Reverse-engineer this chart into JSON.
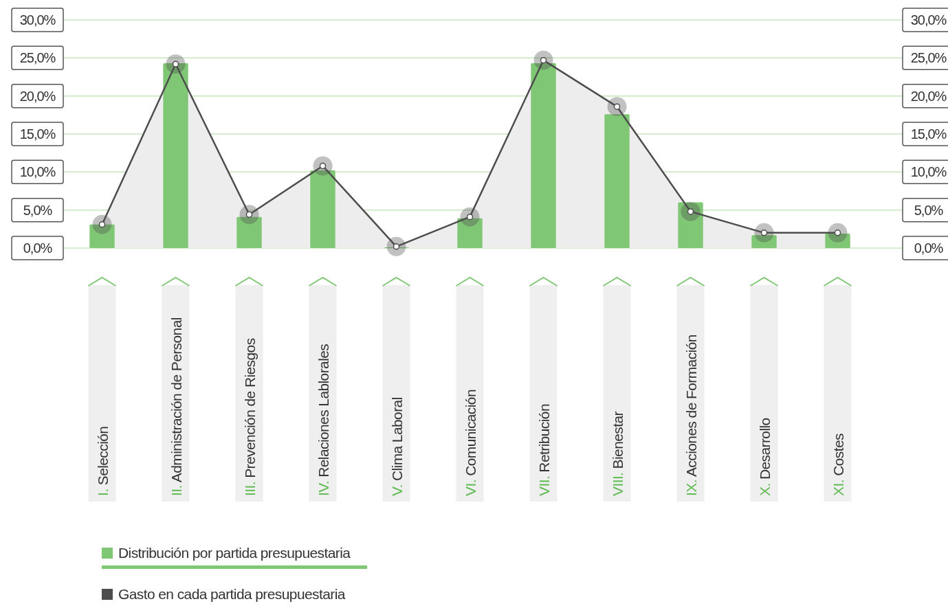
{
  "chart_data": {
    "type": "bar",
    "categories": [
      "I. Selección",
      "II. Administración de Personal",
      "III. Prevención de Riesgos",
      "IV. Relaciones Lablorales",
      "V. Clima Laboral",
      "VI. Comunicación",
      "VII. Retribución",
      "VIII. Bienestar",
      "IX. Acciones de Formación",
      "X. Desarrollo",
      "XI. Costes"
    ],
    "series": [
      {
        "name": "Distribución por partida presupuestaria",
        "color": "#80c775",
        "values": [
          3.1,
          24.3,
          4.1,
          10.2,
          0.1,
          3.9,
          24.3,
          17.6,
          6.0,
          1.7,
          1.9
        ]
      },
      {
        "name": "Gasto en cada partida presupuestaria",
        "type": "area",
        "color": "#4d4d4d",
        "values": [
          3.1,
          24.2,
          4.4,
          10.8,
          0.2,
          4.1,
          24.7,
          18.6,
          4.8,
          2.0,
          2.0
        ]
      }
    ],
    "ylim": [
      0,
      30
    ],
    "yticks": [
      {
        "value": 0,
        "label": "0,0%"
      },
      {
        "value": 5,
        "label": "5,0%"
      },
      {
        "value": 10,
        "label": "10,0%"
      },
      {
        "value": 15,
        "label": "15,0%"
      },
      {
        "value": 20,
        "label": "20,0%"
      },
      {
        "value": 25,
        "label": "25,0%"
      },
      {
        "value": 30,
        "label": "30,0%"
      }
    ],
    "y2lim": [
      0,
      30
    ],
    "y2ticks": [
      {
        "value": 0,
        "label": "0,0%"
      },
      {
        "value": 5,
        "label": "5,0%"
      },
      {
        "value": 10,
        "label": "10,0%"
      },
      {
        "value": 15,
        "label": "15,0%"
      },
      {
        "value": 20,
        "label": "20,0%"
      },
      {
        "value": 25,
        "label": "25,0%"
      },
      {
        "value": 30,
        "label": "30,0%"
      }
    ],
    "grid": "y",
    "legend": "bottom left",
    "marker": "circle",
    "line_style": "solid"
  }
}
